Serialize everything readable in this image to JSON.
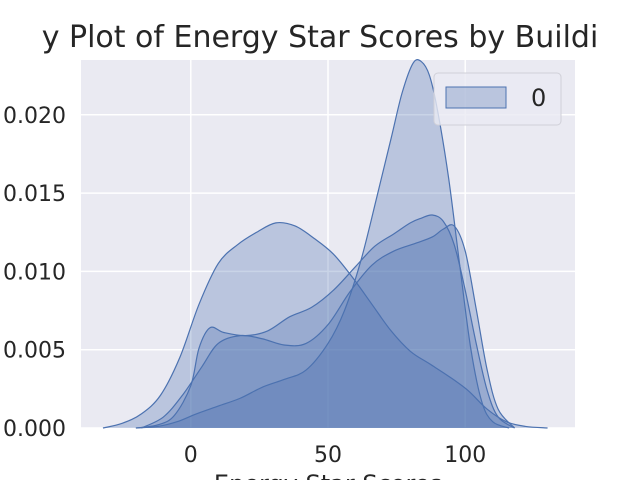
{
  "chart_data": {
    "type": "area",
    "title": "y Plot of Energy Star Scores by Buildi",
    "xlabel": "Energy Star Scores",
    "ylabel": "",
    "xlim": [
      -40,
      140
    ],
    "ylim": [
      0,
      0.0235
    ],
    "xticks": [
      0,
      50,
      100
    ],
    "xtick_labels": [
      "0",
      "50",
      "100"
    ],
    "yticks": [
      0.0,
      0.005,
      0.01,
      0.015,
      0.02
    ],
    "ytick_labels": [
      "0.000",
      "0.005",
      "0.010",
      "0.015",
      "0.020"
    ],
    "grid": true,
    "legend": {
      "position": "top-right",
      "entries": [
        "0"
      ]
    },
    "colors": {
      "fill": "#4c72b0",
      "line": "#4c72b0",
      "background": "#eaeaf2",
      "grid": "#ffffff"
    },
    "series": [
      {
        "x": [
          -32,
          -25,
          -18,
          -11,
          -4,
          3,
          10,
          17,
          24,
          31,
          38,
          45,
          52,
          59,
          66,
          73,
          80,
          87,
          94,
          101,
          108,
          115,
          122,
          130
        ],
        "y": [
          0.0,
          0.0003,
          0.0009,
          0.0021,
          0.0045,
          0.0079,
          0.0105,
          0.0117,
          0.0125,
          0.0131,
          0.0129,
          0.0121,
          0.0111,
          0.0096,
          0.0079,
          0.0062,
          0.0049,
          0.0041,
          0.0033,
          0.0024,
          0.0012,
          0.0004,
          0.0001,
          0.0
        ]
      },
      {
        "x": [
          -20,
          -12,
          -6,
          0,
          3,
          7,
          12,
          20,
          28,
          36,
          44,
          52,
          60,
          67,
          74,
          80,
          84,
          88,
          92,
          96,
          100,
          104,
          108,
          112,
          118
        ],
        "y": [
          0.0,
          0.0002,
          0.0008,
          0.0027,
          0.0051,
          0.0064,
          0.0061,
          0.0059,
          0.0062,
          0.0071,
          0.0077,
          0.0088,
          0.0103,
          0.0116,
          0.0124,
          0.0131,
          0.0134,
          0.0136,
          0.0132,
          0.0117,
          0.0088,
          0.0054,
          0.0024,
          0.0007,
          0.0
        ]
      },
      {
        "x": [
          -18,
          -10,
          -3,
          4,
          10,
          18,
          26,
          34,
          42,
          50,
          58,
          66,
          74,
          82,
          88,
          92,
          96,
          100,
          104,
          108,
          112,
          118
        ],
        "y": [
          0.0,
          0.0007,
          0.0021,
          0.0039,
          0.0054,
          0.0059,
          0.0057,
          0.0053,
          0.0054,
          0.0066,
          0.0087,
          0.0104,
          0.0113,
          0.0118,
          0.0122,
          0.0127,
          0.0129,
          0.0113,
          0.0076,
          0.0037,
          0.0012,
          0.0
        ]
      },
      {
        "x": [
          -20,
          -12,
          -5,
          2,
          10,
          18,
          26,
          34,
          42,
          50,
          56,
          62,
          68,
          73,
          77,
          81,
          84,
          87,
          90,
          94,
          98,
          102,
          106,
          110,
          116
        ],
        "y": [
          0.0,
          0.0001,
          0.0004,
          0.0009,
          0.0014,
          0.0019,
          0.0026,
          0.0031,
          0.0037,
          0.0054,
          0.0075,
          0.0107,
          0.0149,
          0.0185,
          0.0214,
          0.0233,
          0.0234,
          0.0225,
          0.0202,
          0.0159,
          0.0104,
          0.0051,
          0.0017,
          0.0004,
          0.0
        ]
      }
    ]
  }
}
